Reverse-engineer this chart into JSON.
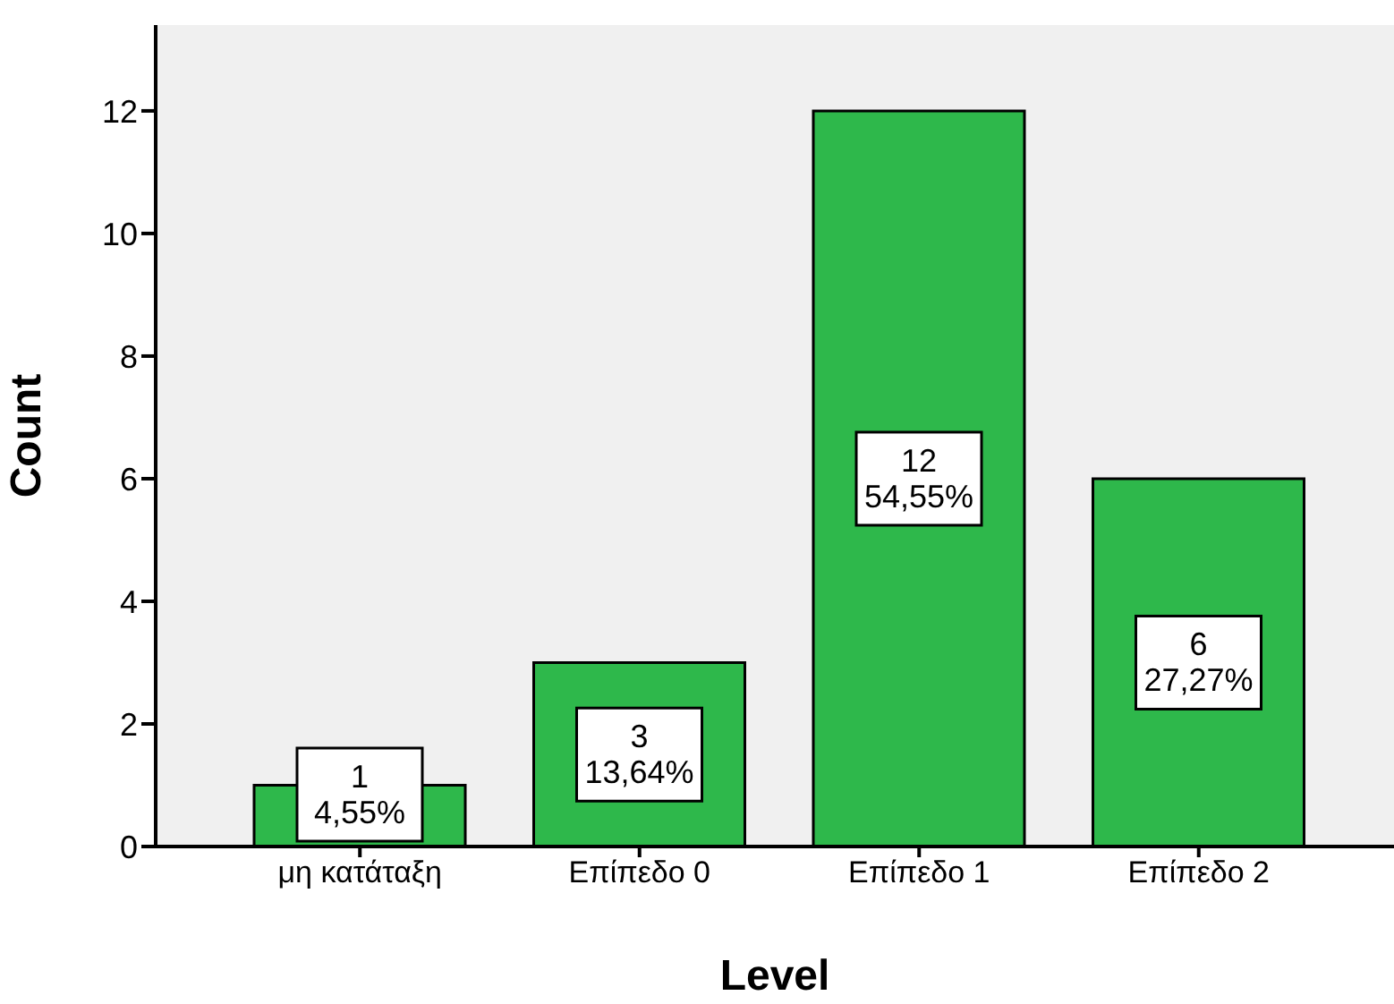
{
  "chart_data": {
    "type": "bar",
    "xlabel": "Level",
    "ylabel": "Count",
    "categories": [
      "μη κατάταξη",
      "Επίπεδο 0",
      "Επίπεδο 1",
      "Επίπεδο 2"
    ],
    "values": [
      1,
      3,
      12,
      6
    ],
    "color": "#2eb84b",
    "value_labels": [
      "1\n4,55%",
      "3\n13,64%",
      "12\n54,55%",
      "6\n27,27%"
    ],
    "ylim": [
      0,
      13.4
    ],
    "yticks": [
      0,
      2,
      4,
      6,
      8,
      10,
      12
    ],
    "grid": false
  }
}
